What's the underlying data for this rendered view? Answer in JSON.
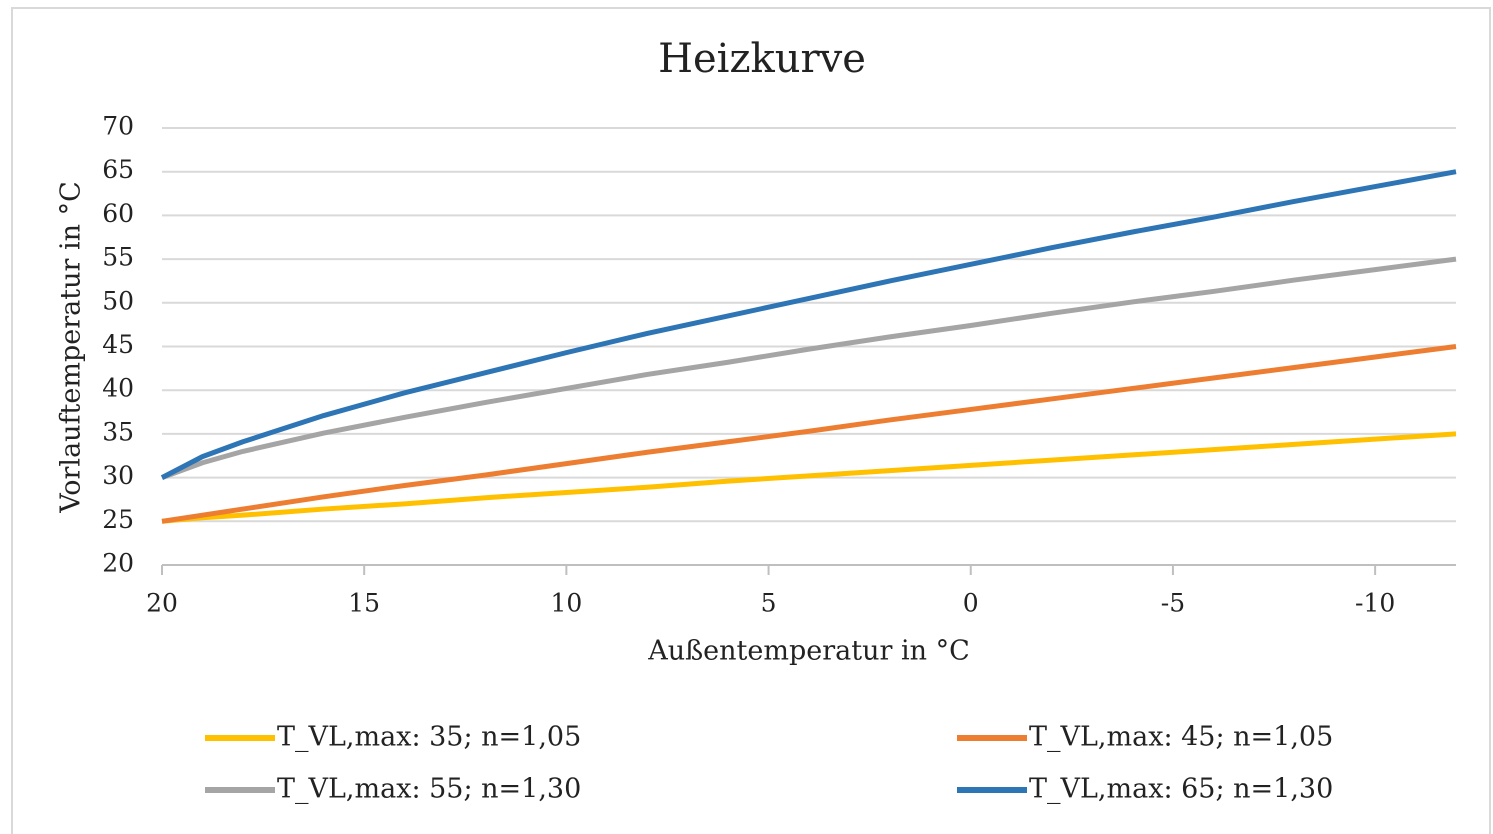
{
  "chart_data": {
    "type": "line",
    "title": "Heizkurve",
    "x_label": "Außentemperatur in °C",
    "y_label": "Vorlauftemperatur in °C",
    "x": [
      20,
      19,
      18,
      16,
      14,
      12,
      10,
      8,
      6,
      4,
      2,
      0,
      -2,
      -4,
      -6,
      -8,
      -10,
      -12
    ],
    "series": [
      {
        "name": "T_VL,max: 35; n=1,05",
        "color": "#FFC000",
        "values": [
          25,
          25.4,
          25.7,
          26.4,
          27.0,
          27.7,
          28.3,
          28.9,
          29.6,
          30.2,
          30.8,
          31.4,
          32.0,
          32.6,
          33.2,
          33.8,
          34.4,
          35
        ]
      },
      {
        "name": "T_VL,max: 45; n=1,05",
        "color": "#ED7D31",
        "values": [
          25,
          25.7,
          26.4,
          27.8,
          29.1,
          30.3,
          31.6,
          32.9,
          34.1,
          35.3,
          36.6,
          37.8,
          39.0,
          40.2,
          41.4,
          42.6,
          43.8,
          45
        ]
      },
      {
        "name": "T_VL,max: 55; n=1,30",
        "color": "#A5A5A5",
        "values": [
          30,
          31.7,
          33.0,
          35.1,
          36.9,
          38.6,
          40.2,
          41.8,
          43.2,
          44.7,
          46.1,
          47.4,
          48.8,
          50.1,
          51.3,
          52.6,
          53.8,
          55
        ]
      },
      {
        "name": "T_VL,max: 65; n=1,30",
        "color": "#2E75B6",
        "values": [
          30,
          32.4,
          34.1,
          37.1,
          39.7,
          42.0,
          44.3,
          46.5,
          48.5,
          50.5,
          52.5,
          54.4,
          56.3,
          58.1,
          59.8,
          61.6,
          63.3,
          65
        ]
      }
    ],
    "xlim": [
      20,
      -12
    ],
    "xticks": [
      20,
      15,
      10,
      5,
      0,
      -5,
      -10
    ],
    "ylim": [
      20,
      70
    ],
    "yticks": [
      20,
      25,
      30,
      35,
      40,
      45,
      50,
      55,
      60,
      65,
      70
    ],
    "grid": true,
    "legend": "bottom"
  }
}
